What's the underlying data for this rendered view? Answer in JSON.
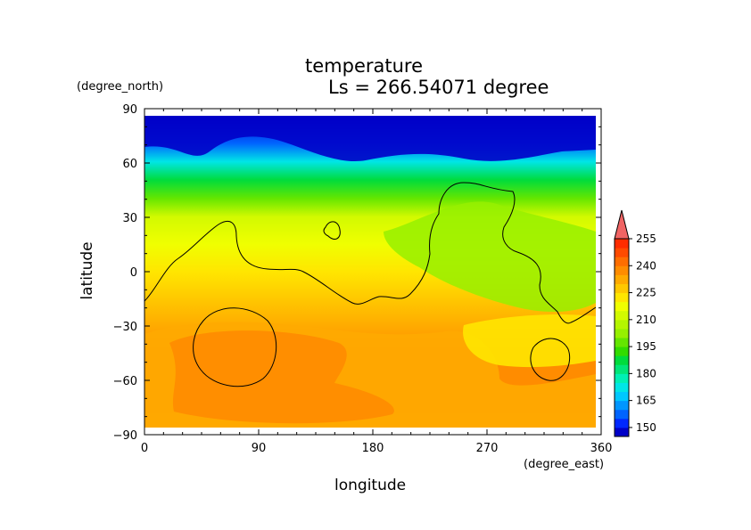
{
  "chart_data": {
    "type": "heatmap",
    "title": "temperature",
    "subtitle": "Ls = 266.54071 degree",
    "xlabel": "longitude",
    "ylabel": "latitude",
    "x_units": "(degree_east)",
    "y_units": "(degree_north)",
    "xlim": [
      0,
      360
    ],
    "ylim": [
      -90,
      90
    ],
    "x_ticks": [
      "0",
      "90",
      "180",
      "270",
      "360"
    ],
    "y_ticks": [
      "90",
      "60",
      "30",
      "0",
      "−30",
      "−60",
      "−90"
    ],
    "colorbar": {
      "levels": [
        145,
        150,
        155,
        160,
        165,
        170,
        175,
        180,
        185,
        190,
        195,
        200,
        205,
        210,
        215,
        220,
        225,
        230,
        235,
        240,
        245,
        250,
        255,
        260
      ],
      "labels": [
        "150",
        "165",
        "180",
        "195",
        "210",
        "225",
        "240",
        "255"
      ],
      "colors": [
        "#0000c8",
        "#0028ff",
        "#0064ff",
        "#0096ff",
        "#00c8ff",
        "#00e6e6",
        "#00f0b4",
        "#00e678",
        "#00dc3c",
        "#32dc00",
        "#64e600",
        "#96f000",
        "#b4f500",
        "#d2fa00",
        "#f0ff00",
        "#ffe600",
        "#ffc800",
        "#ffaa00",
        "#ff8c00",
        "#ff6e00",
        "#ff4b00",
        "#ff2d00",
        "#f06464"
      ]
    },
    "latitude_profile_K": [
      {
        "lat": 85,
        "value": 148
      },
      {
        "lat": 70,
        "value": 156
      },
      {
        "lat": 60,
        "value": 172
      },
      {
        "lat": 50,
        "value": 186
      },
      {
        "lat": 40,
        "value": 198
      },
      {
        "lat": 30,
        "value": 210
      },
      {
        "lat": 15,
        "value": 218
      },
      {
        "lat": 0,
        "value": 224
      },
      {
        "lat": -15,
        "value": 228
      },
      {
        "lat": -30,
        "value": 232
      },
      {
        "lat": -45,
        "value": 236
      },
      {
        "lat": -60,
        "value": 238
      },
      {
        "lat": -75,
        "value": 236
      },
      {
        "lat": -85,
        "value": 232
      }
    ],
    "grid": false
  }
}
